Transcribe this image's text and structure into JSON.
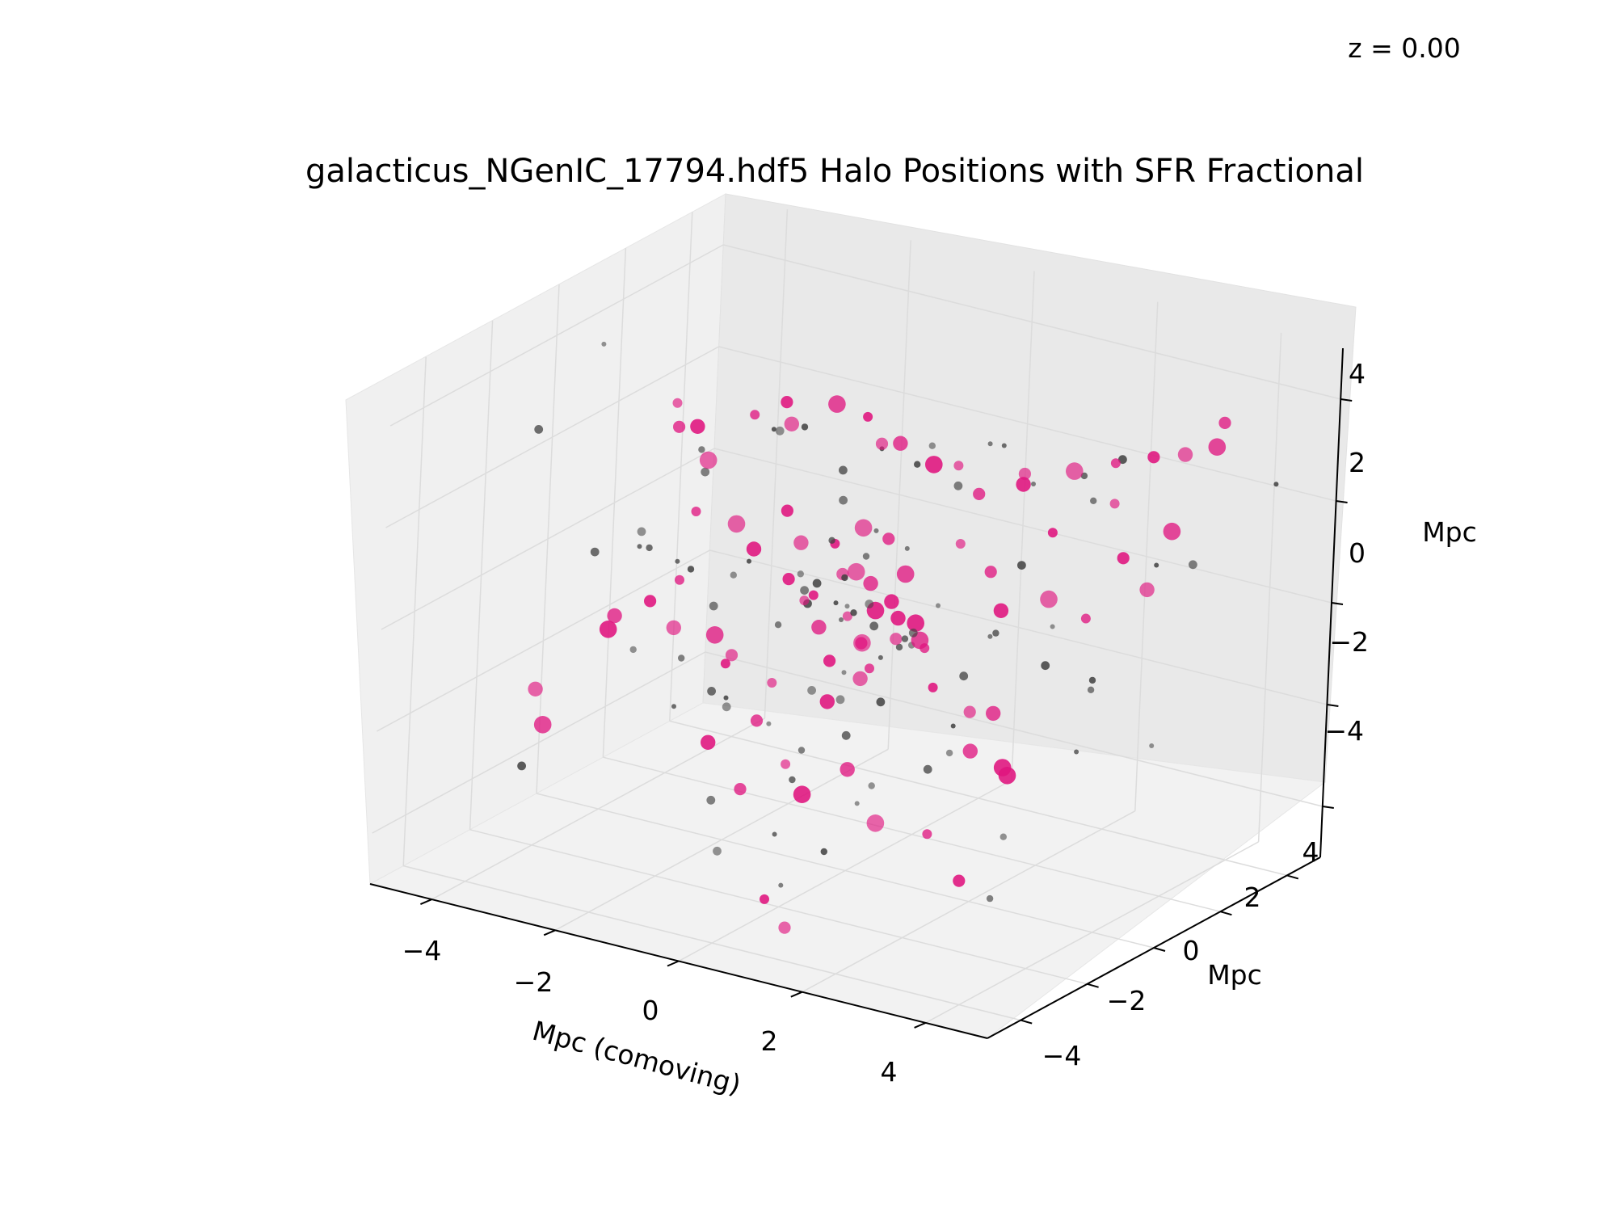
{
  "chart_data": {
    "type": "scatter",
    "projection": "3d",
    "title": "galacticus_NGenIC_17794.hdf5 Halo Positions with SFR Fractional",
    "annotation": "z = 0.00",
    "xlabel": "Mpc (comoving)",
    "ylabel": "Mpc",
    "zlabel": "Mpc",
    "xlim": [
      -5,
      5
    ],
    "ylim": [
      -5,
      5
    ],
    "zlim": [
      -5,
      5
    ],
    "x_ticks": [
      -4,
      -2,
      0,
      2,
      4
    ],
    "y_ticks": [
      -4,
      -2,
      0,
      2,
      4
    ],
    "z_ticks": [
      -4,
      -2,
      0,
      2,
      4
    ],
    "x_tick_labels": [
      "−4",
      "−2",
      "0",
      "2",
      "4"
    ],
    "y_tick_labels": [
      "−4",
      "−2",
      "0",
      "2",
      "4"
    ],
    "z_tick_labels": [
      "−4",
      "−2",
      "0",
      "2",
      "4"
    ],
    "grid": true,
    "colors": {
      "star_forming": "#e0157f",
      "passive": "#404040"
    },
    "series": [
      {
        "role": "star_forming",
        "points": [
          [
            -3.8,
            1.5,
            2.5
          ],
          [
            -3.6,
            1.2,
            2.2
          ],
          [
            -3.2,
            1.0,
            2.4
          ],
          [
            -2.9,
            0.8,
            1.9
          ],
          [
            -2.5,
            1.4,
            2.7
          ],
          [
            -2.1,
            1.6,
            3.0
          ],
          [
            -1.8,
            1.2,
            2.8
          ],
          [
            -1.4,
            1.8,
            3.1
          ],
          [
            -1.0,
            2.0,
            2.9
          ],
          [
            -0.6,
            1.7,
            2.6
          ],
          [
            -0.2,
            1.5,
            2.8
          ],
          [
            0.3,
            1.6,
            2.5
          ],
          [
            0.8,
            1.4,
            2.7
          ],
          [
            1.2,
            1.3,
            2.3
          ],
          [
            1.8,
            1.5,
            2.6
          ],
          [
            2.4,
            1.9,
            2.9
          ],
          [
            2.9,
            2.2,
            3.1
          ],
          [
            3.4,
            2.4,
            3.3
          ],
          [
            3.8,
            2.6,
            3.4
          ],
          [
            4.2,
            2.8,
            3.6
          ],
          [
            -0.5,
            0.2,
            1.2
          ],
          [
            -0.2,
            -0.1,
            0.8
          ],
          [
            0.1,
            0.2,
            0.6
          ],
          [
            0.3,
            0.0,
            0.2
          ],
          [
            -0.3,
            0.3,
            -0.2
          ],
          [
            0.2,
            -0.2,
            -0.4
          ],
          [
            0.5,
            0.1,
            0.4
          ],
          [
            -0.1,
            0.4,
            -0.7
          ],
          [
            0.4,
            -0.3,
            -0.8
          ],
          [
            -0.4,
            0.0,
            -1.0
          ],
          [
            0.0,
            0.2,
            -1.3
          ],
          [
            0.6,
            0.3,
            0.9
          ],
          [
            -0.6,
            -0.2,
            0.3
          ],
          [
            0.7,
            -0.1,
            -0.2
          ],
          [
            -0.7,
            0.2,
            -0.5
          ],
          [
            0.9,
            0.1,
            0.1
          ],
          [
            -0.9,
            0.1,
            0.0
          ],
          [
            0.2,
            0.5,
            1.4
          ],
          [
            -0.2,
            -0.4,
            -1.6
          ],
          [
            0.1,
            -0.1,
            1.8
          ],
          [
            -2.6,
            -0.5,
            0.1
          ],
          [
            -2.9,
            -0.8,
            -0.3
          ],
          [
            -2.4,
            -1.0,
            -0.6
          ],
          [
            -2.1,
            -0.3,
            -0.9
          ],
          [
            -1.7,
            -0.7,
            -1.2
          ],
          [
            -1.4,
            -1.1,
            -0.8
          ],
          [
            -3.2,
            -1.3,
            -0.5
          ],
          [
            -3.5,
            -0.9,
            -1.0
          ],
          [
            -1.1,
            -0.4,
            -1.5
          ],
          [
            -0.9,
            -1.2,
            -1.9
          ],
          [
            -1.9,
            0.4,
            0.6
          ],
          [
            -2.3,
            0.6,
            0.9
          ],
          [
            -2.8,
            0.3,
            1.1
          ],
          [
            -1.6,
            0.8,
            1.3
          ],
          [
            -1.2,
            0.5,
            0.9
          ],
          [
            1.5,
            -0.9,
            0.3
          ],
          [
            1.9,
            -1.2,
            -0.4
          ],
          [
            2.3,
            -0.8,
            -0.9
          ],
          [
            2.7,
            -1.5,
            -1.3
          ],
          [
            3.1,
            -1.1,
            -1.8
          ],
          [
            1.2,
            0.8,
            1.5
          ],
          [
            1.6,
            1.0,
            1.0
          ],
          [
            2.0,
            0.6,
            0.5
          ],
          [
            2.6,
            0.9,
            0.8
          ],
          [
            3.0,
            1.3,
            0.4
          ],
          [
            3.4,
            1.6,
            1.6
          ],
          [
            3.7,
            1.8,
            1.0
          ],
          [
            3.9,
            2.1,
            2.1
          ],
          [
            2.2,
            1.7,
            1.7
          ],
          [
            1.4,
            2.3,
            2.4
          ],
          [
            0.9,
            -1.8,
            -2.1
          ],
          [
            0.4,
            -2.2,
            -2.6
          ],
          [
            -0.2,
            -1.6,
            -2.4
          ],
          [
            -0.7,
            -2.0,
            -2.9
          ],
          [
            -1.3,
            -1.9,
            -2.2
          ],
          [
            1.7,
            -2.4,
            -2.7
          ],
          [
            2.9,
            -3.1,
            -2.3
          ],
          [
            3.6,
            -3.4,
            -2.9
          ],
          [
            -4.0,
            -2.1,
            -1.9
          ],
          [
            -3.7,
            -2.4,
            -2.4
          ],
          [
            0.6,
            -3.6,
            -4.1
          ],
          [
            1.1,
            -3.9,
            -4.4
          ],
          [
            3.3,
            -2.0,
            -0.2
          ],
          [
            3.8,
            -2.6,
            -0.9
          ],
          [
            2.6,
            2.8,
            2.0
          ],
          [
            4.1,
            3.2,
            3.9
          ],
          [
            0.2,
            0.9,
            -0.3
          ],
          [
            -0.4,
            0.7,
            0.5
          ],
          [
            0.8,
            0.6,
            -0.6
          ],
          [
            -0.8,
            -0.6,
            0.7
          ]
        ]
      },
      {
        "role": "passive",
        "points": [
          [
            -4.5,
            0.5,
            3.8
          ],
          [
            -3.9,
            2.5,
            1.2
          ],
          [
            -3.3,
            -1.8,
            0.9
          ],
          [
            -2.6,
            2.2,
            2.1
          ],
          [
            -2.2,
            -2.6,
            -0.4
          ],
          [
            -1.7,
            2.7,
            0.8
          ],
          [
            -1.3,
            -3.0,
            -1.1
          ],
          [
            -0.8,
            3.2,
            1.6
          ],
          [
            -0.3,
            -3.3,
            -0.7
          ],
          [
            0.2,
            3.5,
            2.2
          ],
          [
            0.7,
            -3.1,
            -1.9
          ],
          [
            1.1,
            2.9,
            0.3
          ],
          [
            1.6,
            -2.8,
            -2.2
          ],
          [
            2.1,
            3.1,
            1.8
          ],
          [
            2.5,
            -2.4,
            -1.4
          ],
          [
            3.0,
            3.4,
            0.7
          ],
          [
            3.5,
            -1.9,
            -2.6
          ],
          [
            4.0,
            2.6,
            1.3
          ],
          [
            4.4,
            -1.5,
            -0.8
          ],
          [
            -0.1,
            0.1,
            0.0
          ],
          [
            0.3,
            -0.2,
            0.4
          ],
          [
            -0.4,
            0.3,
            -0.3
          ],
          [
            0.5,
            0.4,
            -0.6
          ],
          [
            -0.5,
            -0.3,
            0.6
          ],
          [
            0.1,
            -0.5,
            -0.9
          ],
          [
            -0.2,
            0.6,
            0.9
          ],
          [
            0.6,
            -0.6,
            0.2
          ],
          [
            -0.6,
            0.5,
            -0.1
          ],
          [
            0.8,
            0.2,
            -0.4
          ],
          [
            -0.8,
            -0.1,
            0.3
          ],
          [
            0.0,
            0.8,
            -1.1
          ],
          [
            0.2,
            -0.8,
            1.1
          ],
          [
            -0.3,
            -0.7,
            -1.3
          ],
          [
            0.4,
            0.7,
            1.2
          ],
          [
            1.0,
            -0.4,
            0.0
          ],
          [
            -1.0,
            0.4,
            -0.2
          ],
          [
            1.3,
            0.0,
            0.6
          ],
          [
            -1.3,
            0.1,
            -0.6
          ],
          [
            1.5,
            0.5,
            -0.9
          ],
          [
            -1.5,
            -0.5,
            0.8
          ],
          [
            -2.0,
            0.0,
            0.2
          ],
          [
            -2.4,
            0.2,
            -0.6
          ],
          [
            -2.7,
            -0.4,
            0.4
          ],
          [
            -3.0,
            0.6,
            -0.2
          ],
          [
            -3.4,
            -0.2,
            0.7
          ],
          [
            2.0,
            0.3,
            0.1
          ],
          [
            2.4,
            -0.3,
            0.5
          ],
          [
            2.8,
            0.5,
            -0.3
          ],
          [
            3.2,
            -0.1,
            0.8
          ],
          [
            3.6,
            0.4,
            -0.5
          ],
          [
            -1.1,
            1.5,
            2.0
          ],
          [
            -0.7,
            1.9,
            2.4
          ],
          [
            0.0,
            2.1,
            2.6
          ],
          [
            0.6,
            1.8,
            2.1
          ],
          [
            1.1,
            2.2,
            2.9
          ],
          [
            -1.9,
            1.8,
            2.5
          ],
          [
            -2.4,
            2.0,
            2.2
          ],
          [
            1.7,
            2.0,
            2.4
          ],
          [
            2.3,
            2.4,
            2.6
          ],
          [
            2.8,
            2.6,
            3.0
          ],
          [
            -0.6,
            -1.4,
            -1.8
          ],
          [
            0.1,
            -1.7,
            -2.0
          ],
          [
            0.7,
            -1.5,
            -1.6
          ],
          [
            -1.2,
            -1.6,
            -1.4
          ],
          [
            1.3,
            -1.8,
            -2.3
          ],
          [
            -0.9,
            -2.5,
            -3.0
          ],
          [
            0.3,
            -2.8,
            -3.2
          ],
          [
            1.0,
            -2.6,
            -3.4
          ],
          [
            -0.4,
            -3.2,
            -3.6
          ],
          [
            0.8,
            -3.5,
            -3.8
          ],
          [
            -4.2,
            1.6,
            -0.5
          ],
          [
            -3.8,
            -2.8,
            -3.1
          ],
          [
            4.3,
            1.0,
            -1.6
          ],
          [
            3.9,
            -3.0,
            -3.3
          ],
          [
            -4.6,
            -1.2,
            2.7
          ],
          [
            4.6,
            3.9,
            2.6
          ],
          [
            -2.8,
            3.6,
            -1.3
          ],
          [
            2.9,
            -3.8,
            1.9
          ],
          [
            -1.6,
            -3.7,
            2.2
          ],
          [
            1.9,
            3.7,
            -2.0
          ],
          [
            -0.2,
            0.0,
            -1.7
          ],
          [
            0.1,
            0.3,
            1.6
          ],
          [
            -0.5,
            0.1,
            1.3
          ],
          [
            0.5,
            -0.1,
            -1.5
          ],
          [
            0.0,
            -0.3,
            0.3
          ],
          [
            -2.1,
            -1.3,
            -1.0
          ],
          [
            -1.8,
            -0.9,
            -1.7
          ],
          [
            2.2,
            -1.1,
            -1.1
          ],
          [
            1.9,
            -0.6,
            -1.9
          ],
          [
            -3.1,
            1.1,
            1.5
          ]
        ]
      }
    ]
  }
}
